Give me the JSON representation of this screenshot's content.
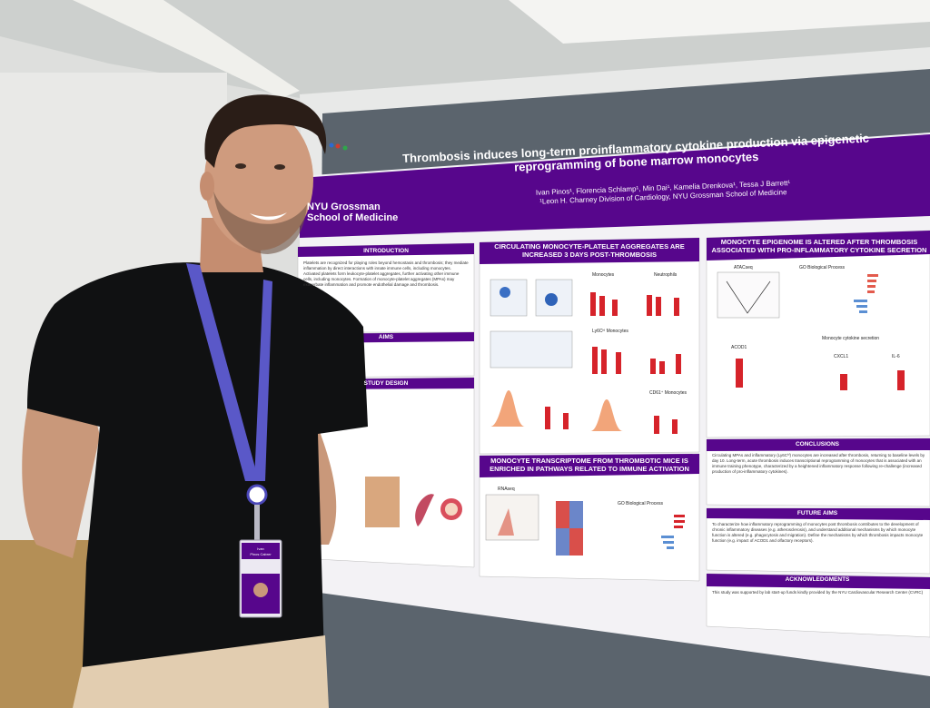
{
  "poster": {
    "title_line1": "Thrombosis induces long-term proinflammatory cytokine production via epigenetic",
    "title_line2": "reprogramming of bone marrow monocytes",
    "authors": "Ivan Pinos¹, Florencia Schlamp¹, Min Dai¹, Kamelia Drenkova¹, Tessa J Barrett¹",
    "affiliation": "¹Leon H. Charney Division of Cardiology, NYU Grossman School of Medicine",
    "logo_line1": "NYU Grossman",
    "logo_line2": "School of Medicine",
    "sections": {
      "introduction": "INTRODUCTION",
      "aims": "AIMS",
      "study_design": "STUDY DESIGN",
      "circulating": "CIRCULATING MONOCYTE-PLATELET AGGREGATES ARE INCREASED 3 DAYS POST-THROMBOSIS",
      "transcriptome": "MONOCYTE TRANSCRIPTOME FROM THROMBOTIC MICE IS ENRICHED IN PATHWAYS RELATED TO IMMUNE ACTIVATION",
      "epigenome": "MONOCYTE EPIGENOME IS ALTERED AFTER THROMBOSIS ASSOCIATED WITH PRO-INFLAMMATORY CYTOKINE SECRETION",
      "conclusions": "CONCLUSIONS",
      "future_aims": "FUTURE AIMS",
      "acknowledgments": "ACKNOWLEDGMENTS"
    },
    "panel_labels": {
      "monocytes": "Monocytes",
      "neutrophils": "Neutrophils",
      "ly6c_monocytes": "Ly6Cʰⁱ Monocytes",
      "cd61_monocytes": "CD61⁺ Monocytes",
      "rnaseq": "RNAseq",
      "go_process": "GO Biological Process",
      "atacseq": "ATACseq",
      "acod1": "ACOD1",
      "cytokine": "Monocyte cytokine secretion",
      "cxcl1": "CXCL1",
      "il6": "IL-6"
    },
    "intro_text": "Platelets are recognized for playing roles beyond hemostasis and thrombosis; they mediate inflammation by direct interactions with innate immune cells, including monocytes. Activated platelets form leukocyte-platelet aggregates, further activating other immune cells, including monocytes. Formation of monocyte-platelet aggregates (MPAs) may exacerbate inflammation and promote endothelial damage and thrombosis.",
    "conclusions_text": "Circulating MPAs and inflammatory (Ly6Cʰⁱ) monocytes are increased after thrombosis, returning to baseline levels by day 10. Long-term, acute thrombosis induces transcriptional reprogramming of monocytes that is associated with an immune training phenotype, characterized by a heightened inflammatory response following re-challenge (increased production of pro-inflammatory cytokines).",
    "future_text": "To characterize how inflammatory reprogramming of monocytes post thrombosis contributes to the development of chronic inflammatory diseases (e.g. atherosclerosis), and understand additional mechanisms by which monocyte function is altered (e.g. phagocytosis and migration). Define the mechanisms by which thrombosis impacts monocyte function (e.g. impact of ACOD1 and olfactory receptors).",
    "ack_text": "This study was supported by lab start-up funds kindly provided by the NYU Cardiovascular Research Center (CVRC)",
    "badge_name_1": "Ivan",
    "badge_name_2": "Pinos Cabrer"
  },
  "colors": {
    "purple": "#57068c",
    "poster_bg": "#f4f3f6",
    "board": "#59626b",
    "wall": "#e6e7e6",
    "red_bar": "#d6232a"
  }
}
